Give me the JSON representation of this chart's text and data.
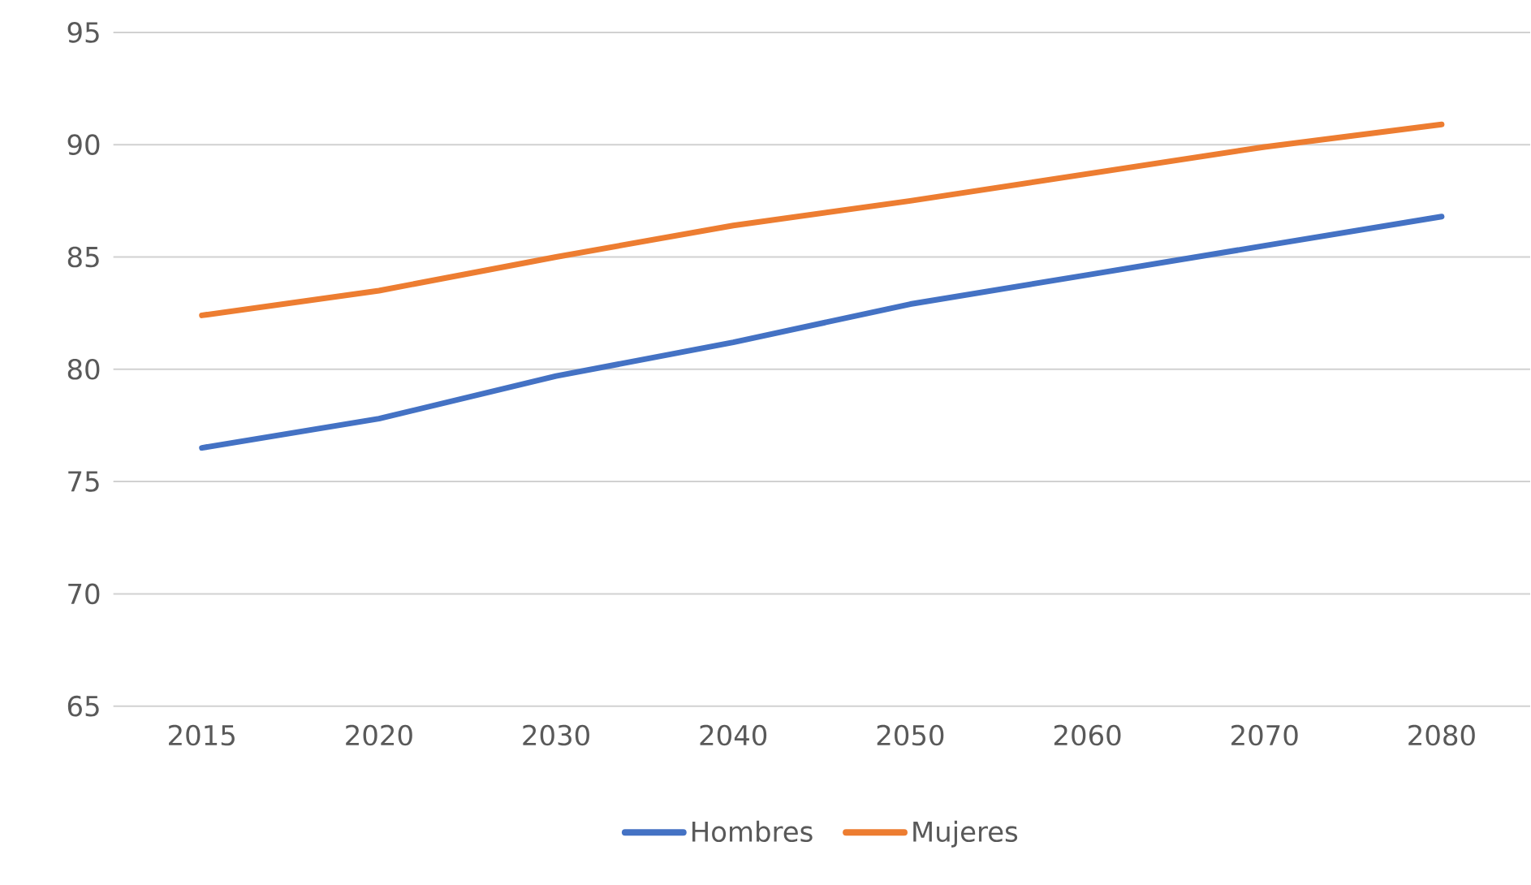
{
  "chart_data": {
    "type": "line",
    "categories": [
      "2015",
      "2020",
      "2030",
      "2040",
      "2050",
      "2060",
      "2070",
      "2080"
    ],
    "series": [
      {
        "name": "Hombres",
        "color": "#4472c4",
        "values": [
          76.5,
          77.8,
          79.7,
          81.2,
          82.9,
          84.2,
          85.5,
          86.8
        ]
      },
      {
        "name": "Mujeres",
        "color": "#ed7d31",
        "values": [
          82.4,
          83.5,
          85.0,
          86.4,
          87.5,
          88.7,
          89.9,
          90.9
        ]
      }
    ],
    "ylim": [
      65,
      95
    ],
    "yticks": [
      65,
      70,
      75,
      80,
      85,
      90,
      95
    ],
    "grid": "y",
    "legend": "bottom"
  }
}
